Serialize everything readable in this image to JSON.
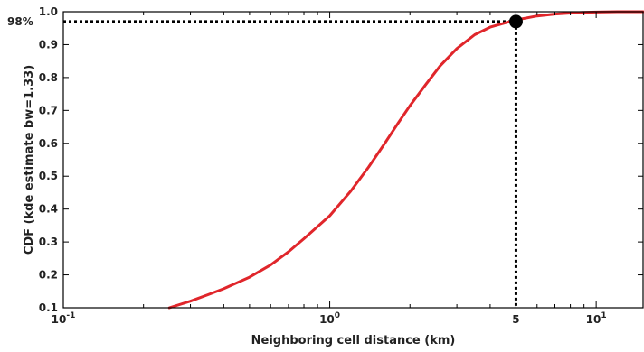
{
  "chart_data": {
    "type": "line",
    "xlabel": "Neighboring cell distance (km)",
    "ylabel": "CDF (kde estimate bw=1.33)",
    "x_scale": "log",
    "xlim": [
      0.1,
      15
    ],
    "ylim": [
      0.1,
      1.0
    ],
    "grid": false,
    "x_ticks": [
      {
        "value": 0.1,
        "base": "10",
        "exp": "-1"
      },
      {
        "value": 1,
        "base": "10",
        "exp": "0"
      },
      {
        "value": 5,
        "base": "5",
        "exp": ""
      },
      {
        "value": 10,
        "base": "10",
        "exp": "1"
      }
    ],
    "y_ticks": [
      {
        "value": 0.1,
        "label": "0.1"
      },
      {
        "value": 0.2,
        "label": "0.2"
      },
      {
        "value": 0.3,
        "label": "0.3"
      },
      {
        "value": 0.4,
        "label": "0.4"
      },
      {
        "value": 0.5,
        "label": "0.5"
      },
      {
        "value": 0.6,
        "label": "0.6"
      },
      {
        "value": 0.7,
        "label": "0.7"
      },
      {
        "value": 0.8,
        "label": "0.8"
      },
      {
        "value": 0.9,
        "label": "0.9"
      },
      {
        "value": 1.0,
        "label": "1.0"
      }
    ],
    "series": [
      {
        "color": "#e0262b",
        "x": [
          0.25,
          0.3,
          0.35,
          0.4,
          0.5,
          0.6,
          0.7,
          0.8,
          1.0,
          1.2,
          1.4,
          1.6,
          1.8,
          2.0,
          2.3,
          2.6,
          3.0,
          3.5,
          4.0,
          4.5,
          5.0,
          6.0,
          7.0,
          8.0,
          9.0,
          10.0,
          12.0,
          15.0
        ],
        "y": [
          0.1,
          0.12,
          0.14,
          0.158,
          0.193,
          0.23,
          0.27,
          0.31,
          0.38,
          0.455,
          0.528,
          0.597,
          0.66,
          0.714,
          0.78,
          0.836,
          0.888,
          0.93,
          0.953,
          0.965,
          0.975,
          0.987,
          0.993,
          0.996,
          0.998,
          0.999,
          1.0,
          1.0
        ]
      }
    ],
    "annotation": {
      "x": 5,
      "y": 0.97,
      "label": "98%",
      "marker_color": "#000000"
    }
  }
}
